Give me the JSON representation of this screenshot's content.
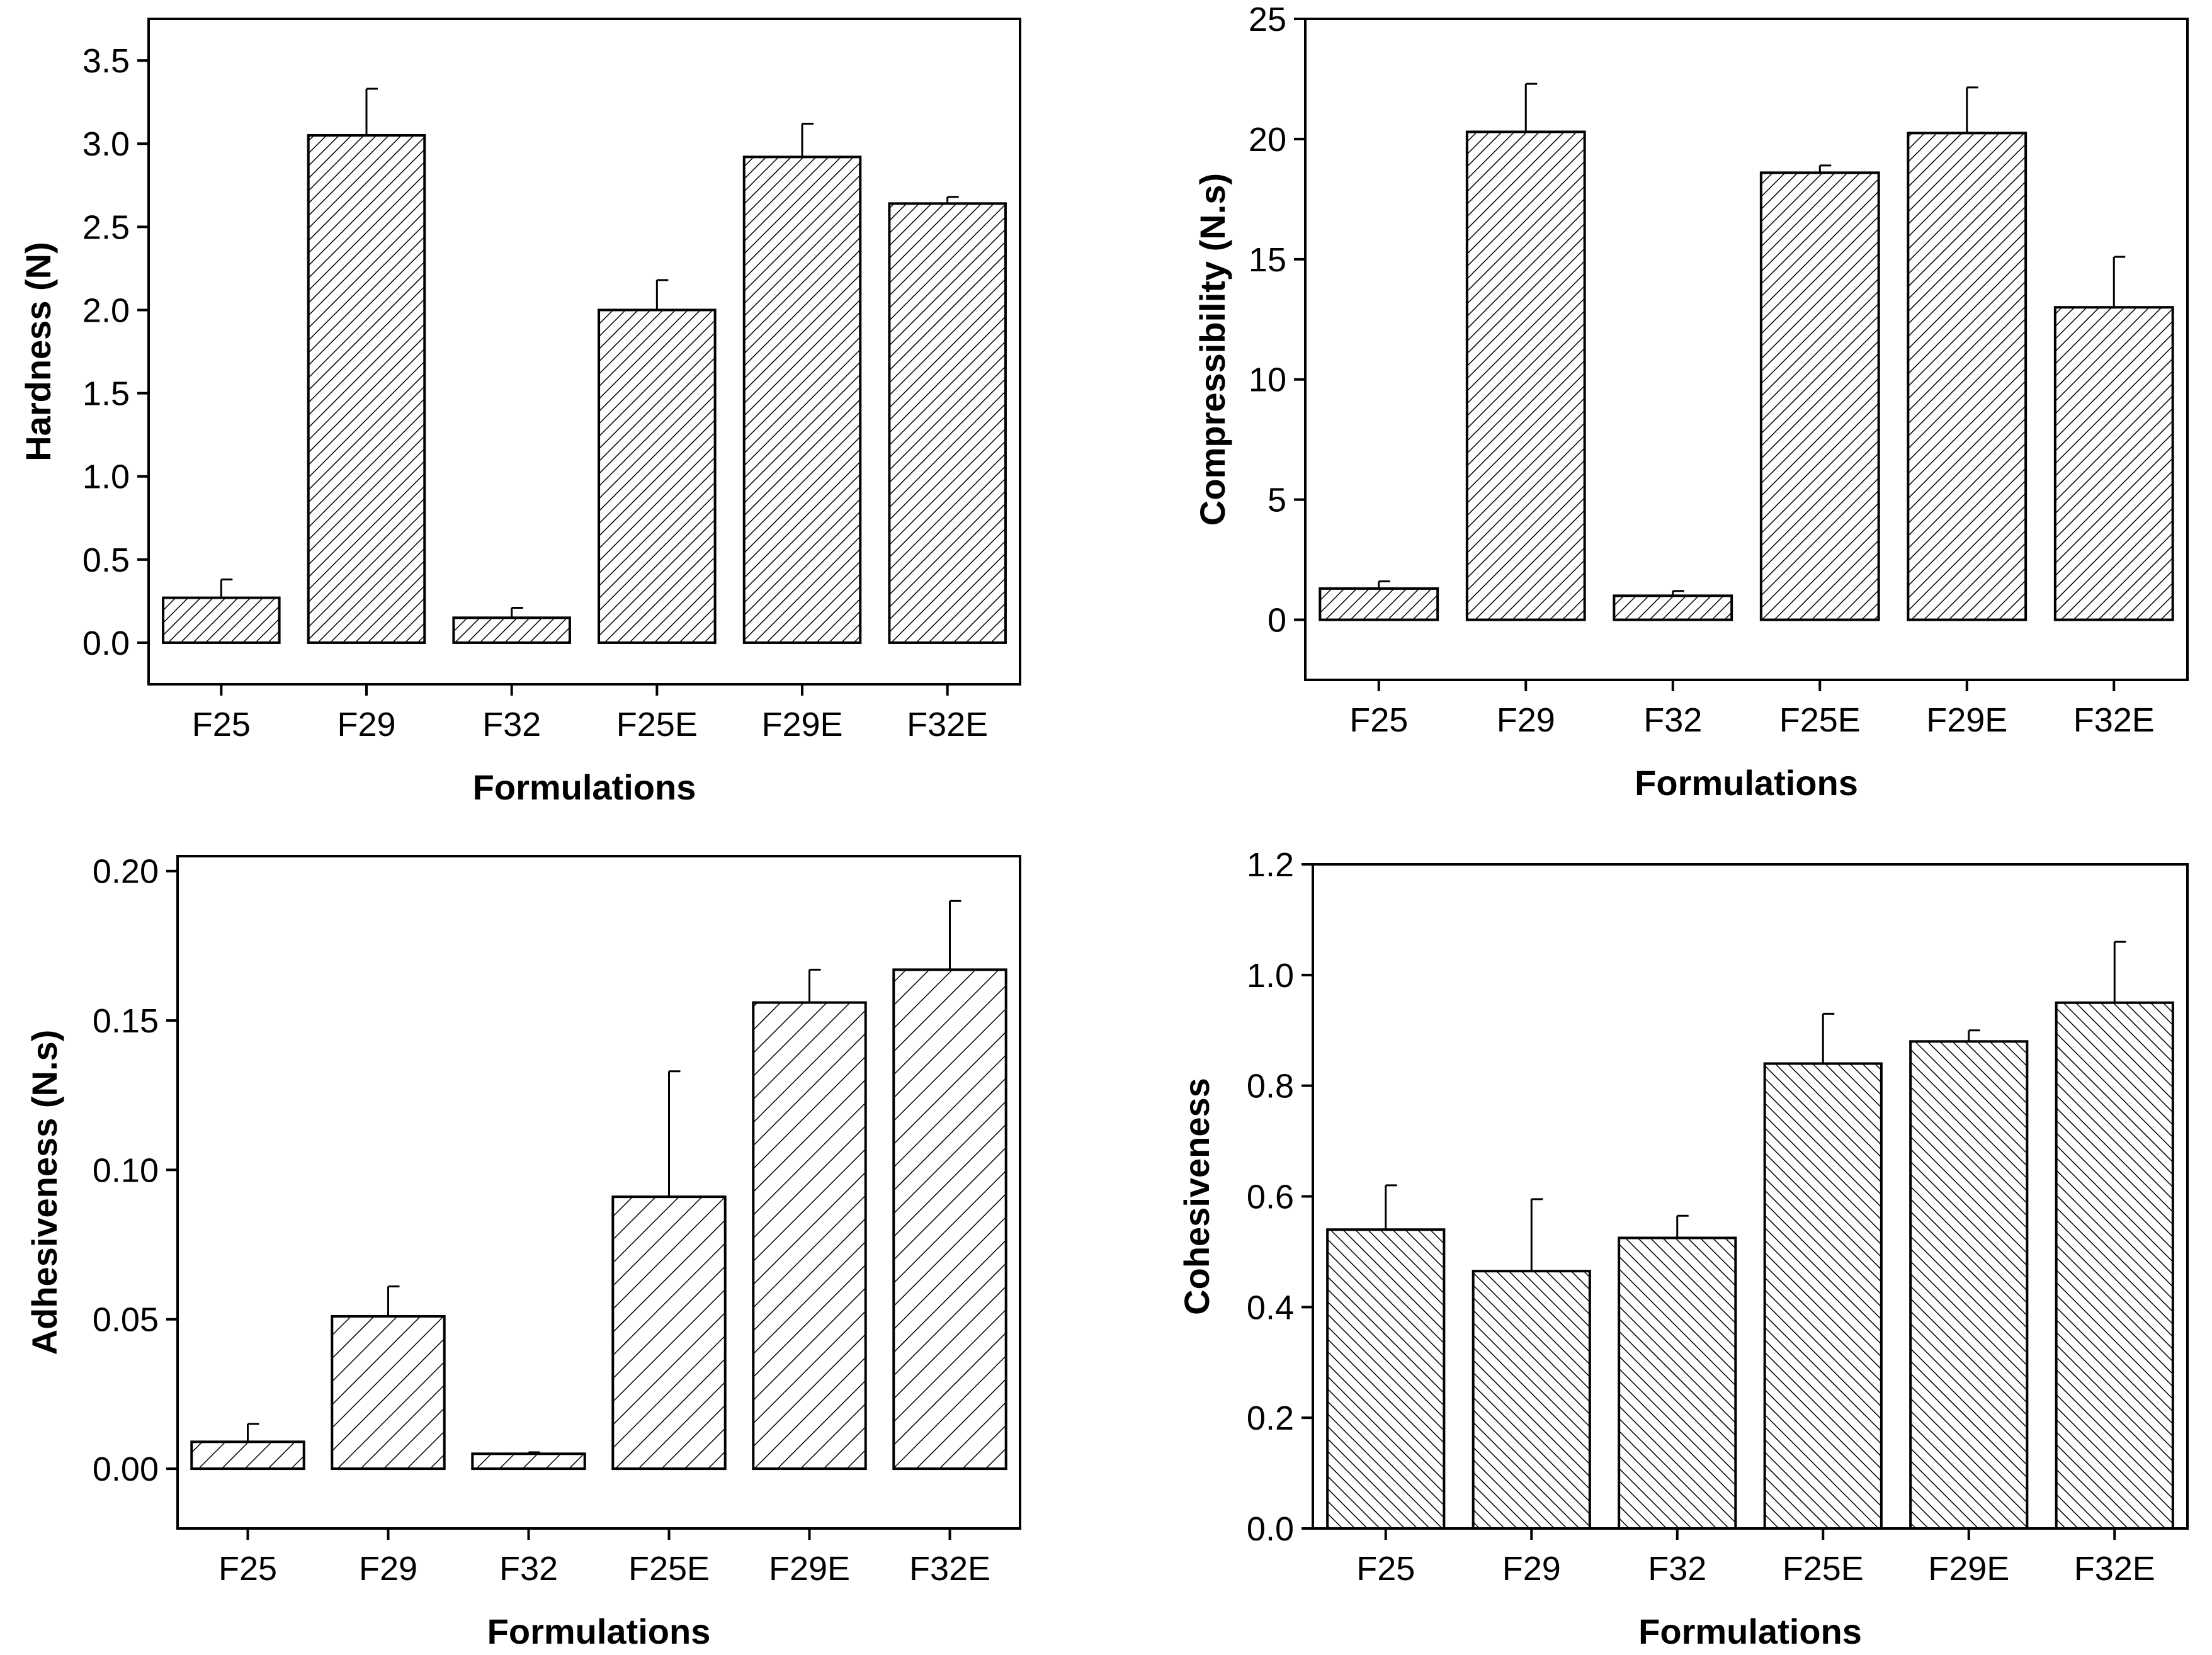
{
  "chart_data": [
    {
      "type": "bar",
      "categories": [
        "F25",
        "F29",
        "F32",
        "F25E",
        "F29E",
        "F32E"
      ],
      "values": [
        0.27,
        3.05,
        0.15,
        2.0,
        2.92,
        2.64
      ],
      "errors": [
        0.11,
        0.28,
        0.06,
        0.18,
        0.2,
        0.04
      ],
      "yticks": [
        "0.0",
        "0.5",
        "1.0",
        "1.5",
        "2.0",
        "2.5",
        "3.0",
        "3.5"
      ],
      "ylim": [
        -0.25,
        3.75
      ],
      "xlabel": "Formulations",
      "ylabel": "Hardness (N)"
    },
    {
      "type": "bar",
      "categories": [
        "F25",
        "F29",
        "F32",
        "F25E",
        "F29E",
        "F32E"
      ],
      "values": [
        1.3,
        20.3,
        1.0,
        18.6,
        20.25,
        13.0
      ],
      "errors": [
        0.3,
        2.0,
        0.2,
        0.3,
        1.9,
        2.1
      ],
      "yticks": [
        "0",
        "5",
        "10",
        "15",
        "20",
        "25"
      ],
      "ylim": [
        -2.5,
        25
      ],
      "xlabel": "Formulations",
      "ylabel": "Compressibility (N.s)"
    },
    {
      "type": "bar",
      "categories": [
        "F25",
        "F29",
        "F32",
        "F25E",
        "F29E",
        "F32E"
      ],
      "values": [
        0.009,
        0.051,
        0.005,
        0.091,
        0.156,
        0.167
      ],
      "errors": [
        0.006,
        0.01,
        0.0005,
        0.042,
        0.011,
        0.023
      ],
      "yticks": [
        "0.00",
        "0.05",
        "0.10",
        "0.15",
        "0.20"
      ],
      "ylim": [
        -0.02,
        0.205
      ],
      "xlabel": "Formulations",
      "ylabel": "Adhesiveness (N.s)"
    },
    {
      "type": "bar",
      "categories": [
        "F25",
        "F29",
        "F32",
        "F25E",
        "F29E",
        "F32E"
      ],
      "values": [
        0.54,
        0.465,
        0.525,
        0.84,
        0.88,
        0.95
      ],
      "errors": [
        0.08,
        0.13,
        0.04,
        0.09,
        0.02,
        0.11
      ],
      "yticks": [
        "0.0",
        "0.2",
        "0.4",
        "0.6",
        "0.8",
        "1.0",
        "1.2"
      ],
      "ylim": [
        0,
        1.2
      ],
      "xlabel": "Formulations",
      "ylabel": "Cohesiveness"
    }
  ]
}
